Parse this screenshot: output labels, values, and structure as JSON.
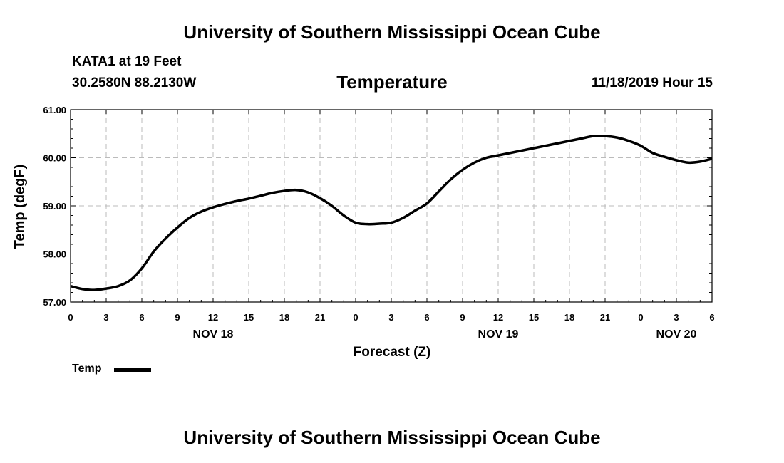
{
  "header": {
    "org_title": "University of Southern Mississippi Ocean Cube",
    "station": "KATA1 at 19 Feet",
    "coords": "30.2580N 88.2130W",
    "timestamp": "11/18/2019 Hour 15"
  },
  "footer": {
    "org_title": "University of Southern Mississippi Ocean Cube"
  },
  "chart_data": {
    "type": "line",
    "title": "Temperature",
    "xlabel": "Forecast (Z)",
    "ylabel": "Temp (degF)",
    "xlim": [
      0,
      54
    ],
    "ylim": [
      57,
      61
    ],
    "grid": true,
    "y_ticks": [
      "57.00",
      "58.00",
      "59.00",
      "60.00",
      "61.00"
    ],
    "x_ticks": [
      "0",
      "3",
      "6",
      "9",
      "12",
      "15",
      "18",
      "21",
      "0",
      "3",
      "6",
      "9",
      "12",
      "15",
      "18",
      "21",
      "0",
      "3",
      "6"
    ],
    "date_labels": [
      {
        "hour": 12,
        "label": "NOV 18"
      },
      {
        "hour": 36,
        "label": "NOV 19"
      },
      {
        "hour": 51,
        "label": "NOV 20"
      }
    ],
    "legend": {
      "position": "bottom-left",
      "entries": [
        "Temp"
      ]
    },
    "series": [
      {
        "name": "Temp",
        "x": [
          0,
          1,
          2,
          3,
          4,
          5,
          6,
          7,
          8,
          9,
          10,
          11,
          12,
          13,
          14,
          15,
          16,
          17,
          18,
          19,
          20,
          21,
          22,
          23,
          24,
          25,
          26,
          27,
          28,
          29,
          30,
          31,
          32,
          33,
          34,
          35,
          36,
          37,
          38,
          39,
          40,
          41,
          42,
          43,
          44,
          45,
          46,
          47,
          48,
          49,
          50,
          51,
          52,
          53,
          54
        ],
        "values": [
          57.33,
          57.27,
          57.25,
          57.28,
          57.33,
          57.45,
          57.7,
          58.05,
          58.32,
          58.55,
          58.75,
          58.88,
          58.97,
          59.04,
          59.1,
          59.15,
          59.21,
          59.27,
          59.31,
          59.33,
          59.28,
          59.16,
          59.0,
          58.8,
          58.65,
          58.62,
          58.63,
          58.65,
          58.75,
          58.9,
          59.05,
          59.3,
          59.55,
          59.75,
          59.9,
          60.0,
          60.05,
          60.1,
          60.15,
          60.2,
          60.25,
          60.3,
          60.35,
          60.4,
          60.45,
          60.45,
          60.42,
          60.35,
          60.25,
          60.1,
          60.02,
          59.95,
          59.9,
          59.92,
          59.98
        ]
      }
    ]
  }
}
